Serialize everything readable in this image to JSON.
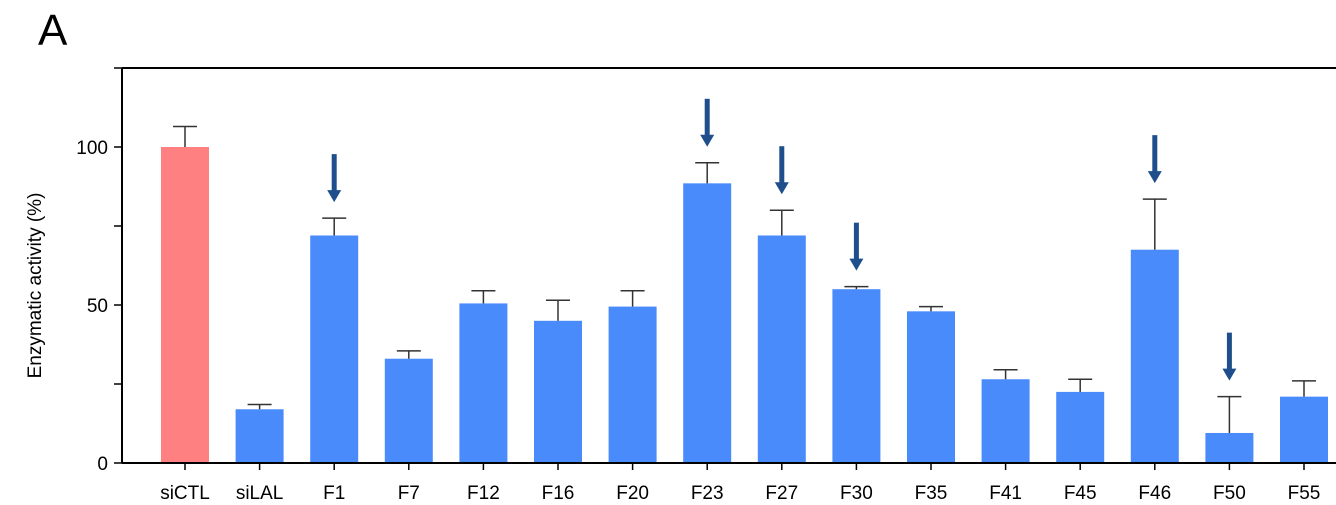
{
  "panel_label": "A",
  "colors": {
    "control_bar": "#FF8080",
    "bar": "#4A8BFB",
    "arrow": "#1F4E8C",
    "axis": "#000000"
  },
  "chart_data": {
    "type": "bar",
    "title": "",
    "xlabel": "",
    "ylabel": "Enzymatic activity (%)",
    "ylim": [
      0,
      125
    ],
    "yticks": [
      0,
      50,
      100
    ],
    "grid": false,
    "categories": [
      "siCTL",
      "siLAL",
      "F1",
      "F7",
      "F12",
      "F16",
      "F20",
      "F23",
      "F27",
      "F30",
      "F35",
      "F41",
      "F45",
      "F46",
      "F50",
      "F55"
    ],
    "values": [
      100,
      17,
      72,
      33,
      50.5,
      45,
      49.5,
      88.5,
      72,
      55,
      48,
      26.5,
      22.5,
      67.5,
      9.5,
      21
    ],
    "error": [
      6.5,
      1.5,
      5.5,
      2.5,
      4,
      6.5,
      5,
      6.5,
      8,
      0.8,
      1.5,
      3,
      4,
      16,
      11.5,
      5
    ],
    "arrows_on": [
      "F1",
      "F23",
      "F27",
      "F30",
      "F46",
      "F50"
    ],
    "bar_colors": [
      "control",
      "bar",
      "bar",
      "bar",
      "bar",
      "bar",
      "bar",
      "bar",
      "bar",
      "bar",
      "bar",
      "bar",
      "bar",
      "bar",
      "bar",
      "bar"
    ]
  }
}
